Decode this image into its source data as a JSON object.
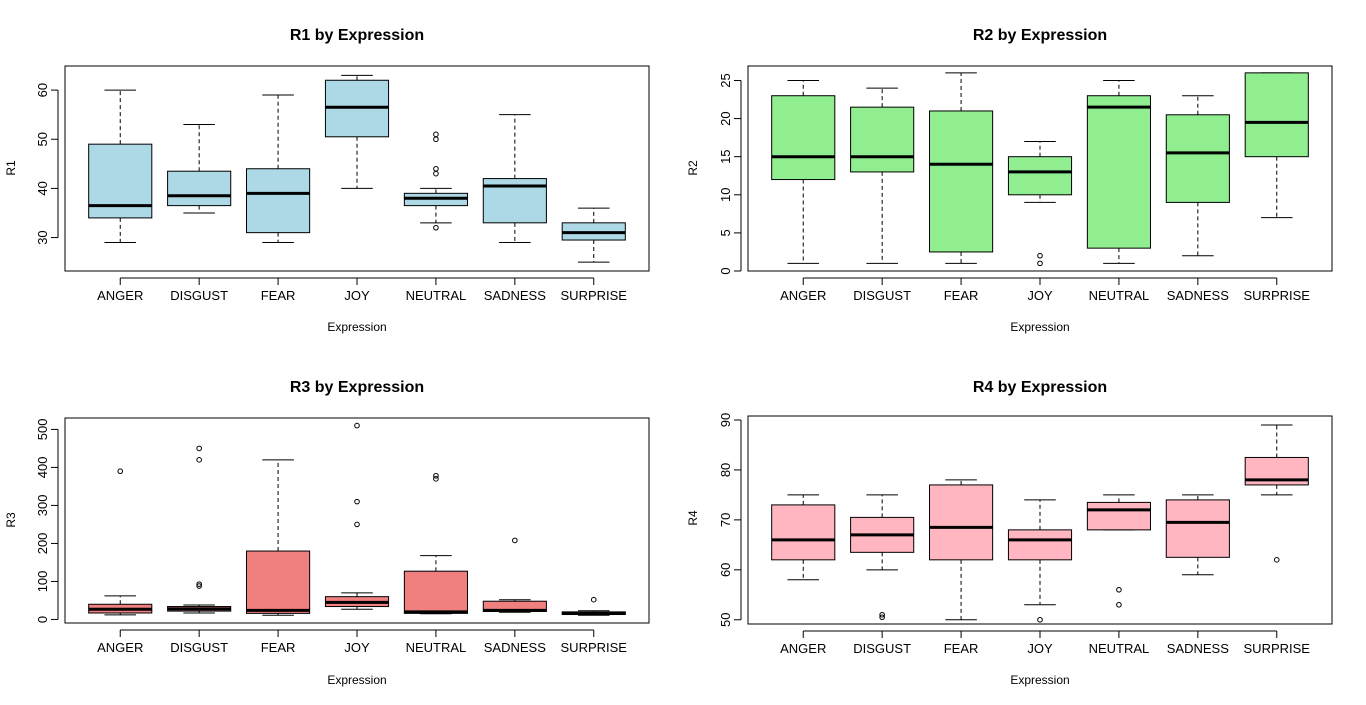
{
  "chart_data": [
    {
      "type": "boxplot",
      "title": "R1 by Expression",
      "xlabel": "Expression",
      "ylabel": "R1",
      "ylim": [
        23.2,
        64.9
      ],
      "yticks": [
        30,
        40,
        50,
        60
      ],
      "fill": "#add8e6",
      "categories": [
        "ANGER",
        "DISGUST",
        "FEAR",
        "JOY",
        "NEUTRAL",
        "SADNESS",
        "SURPRISE"
      ],
      "boxes": [
        {
          "min": 29,
          "q1": 34,
          "median": 36.5,
          "q3": 49,
          "max": 60,
          "outliers": []
        },
        {
          "min": 35,
          "q1": 36.5,
          "median": 38.5,
          "q3": 43.5,
          "max": 53,
          "outliers": []
        },
        {
          "min": 29,
          "q1": 31,
          "median": 39,
          "q3": 44,
          "max": 59,
          "outliers": []
        },
        {
          "min": 40,
          "q1": 50.5,
          "median": 56.5,
          "q3": 62,
          "max": 63,
          "outliers": []
        },
        {
          "min": 33,
          "q1": 36.5,
          "median": 38,
          "q3": 39,
          "max": 40,
          "outliers": [
            32,
            43,
            44,
            50,
            51
          ]
        },
        {
          "min": 29,
          "q1": 33,
          "median": 40.5,
          "q3": 42,
          "max": 55,
          "outliers": []
        },
        {
          "min": 25,
          "q1": 29.5,
          "median": 31,
          "q3": 33,
          "max": 36,
          "outliers": []
        }
      ]
    },
    {
      "type": "boxplot",
      "title": "R2 by Expression",
      "xlabel": "Expression",
      "ylabel": "R2",
      "ylim": [
        0,
        26.9
      ],
      "yticks": [
        0,
        5,
        10,
        15,
        20,
        25
      ],
      "fill": "#90ee90",
      "categories": [
        "ANGER",
        "DISGUST",
        "FEAR",
        "JOY",
        "NEUTRAL",
        "SADNESS",
        "SURPRISE"
      ],
      "boxes": [
        {
          "min": 1,
          "q1": 12,
          "median": 15,
          "q3": 23,
          "max": 25,
          "outliers": []
        },
        {
          "min": 1,
          "q1": 13,
          "median": 15,
          "q3": 21.5,
          "max": 24,
          "outliers": []
        },
        {
          "min": 1,
          "q1": 2.5,
          "median": 14,
          "q3": 21,
          "max": 26,
          "outliers": []
        },
        {
          "min": 9,
          "q1": 10,
          "median": 13,
          "q3": 15,
          "max": 17,
          "outliers": [
            1,
            2
          ]
        },
        {
          "min": 1,
          "q1": 3,
          "median": 21.5,
          "q3": 23,
          "max": 25,
          "outliers": []
        },
        {
          "min": 2,
          "q1": 9,
          "median": 15.5,
          "q3": 20.5,
          "max": 23,
          "outliers": []
        },
        {
          "min": 7,
          "q1": 15,
          "median": 19.5,
          "q3": 26,
          "max": 26,
          "outliers": []
        }
      ]
    },
    {
      "type": "boxplot",
      "title": "R3 by Expression",
      "xlabel": "Expression",
      "ylabel": "R3",
      "ylim": [
        -9.3,
        530
      ],
      "yticks": [
        0,
        100,
        200,
        300,
        400,
        500
      ],
      "fill": "#f08080",
      "categories": [
        "ANGER",
        "DISGUST",
        "FEAR",
        "JOY",
        "NEUTRAL",
        "SADNESS",
        "SURPRISE"
      ],
      "boxes": [
        {
          "min": 12,
          "q1": 17,
          "median": 27,
          "q3": 40,
          "max": 62,
          "outliers": [
            390
          ]
        },
        {
          "min": 17,
          "q1": 22,
          "median": 28,
          "q3": 34,
          "max": 38,
          "outliers": [
            88,
            93,
            420,
            450
          ]
        },
        {
          "min": 11,
          "q1": 16,
          "median": 24,
          "q3": 180,
          "max": 420,
          "outliers": []
        },
        {
          "min": 27,
          "q1": 34,
          "median": 45,
          "q3": 60,
          "max": 70,
          "outliers": [
            250,
            310,
            510
          ]
        },
        {
          "min": 15,
          "q1": 16,
          "median": 20,
          "q3": 127,
          "max": 168,
          "outliers": [
            370,
            378
          ]
        },
        {
          "min": 19,
          "q1": 21,
          "median": 24,
          "q3": 48,
          "max": 52,
          "outliers": [
            208
          ]
        },
        {
          "min": 11,
          "q1": 13,
          "median": 16,
          "q3": 20,
          "max": 23,
          "outliers": [
            52
          ]
        }
      ]
    },
    {
      "type": "boxplot",
      "title": "R4 by Expression",
      "xlabel": "Expression",
      "ylabel": "R4",
      "ylim": [
        49.15,
        90.8
      ],
      "yticks": [
        50,
        60,
        70,
        80,
        90
      ],
      "fill": "#ffb6c1",
      "categories": [
        "ANGER",
        "DISGUST",
        "FEAR",
        "JOY",
        "NEUTRAL",
        "SADNESS",
        "SURPRISE"
      ],
      "boxes": [
        {
          "min": 58,
          "q1": 62,
          "median": 66,
          "q3": 73,
          "max": 75,
          "outliers": []
        },
        {
          "min": 60,
          "q1": 63.5,
          "median": 67,
          "q3": 70.5,
          "max": 75,
          "outliers": [
            50.5,
            51
          ]
        },
        {
          "min": 50,
          "q1": 62,
          "median": 68.5,
          "q3": 77,
          "max": 78,
          "outliers": []
        },
        {
          "min": 53,
          "q1": 62,
          "median": 66,
          "q3": 68,
          "max": 74,
          "outliers": [
            50
          ]
        },
        {
          "min": 68,
          "q1": 68,
          "median": 72,
          "q3": 73.5,
          "max": 75,
          "outliers": [
            53,
            56
          ]
        },
        {
          "min": 59,
          "q1": 62.5,
          "median": 69.5,
          "q3": 74,
          "max": 75,
          "outliers": []
        },
        {
          "min": 75,
          "q1": 77,
          "median": 78,
          "q3": 82.5,
          "max": 89,
          "outliers": [
            62
          ]
        }
      ]
    }
  ]
}
